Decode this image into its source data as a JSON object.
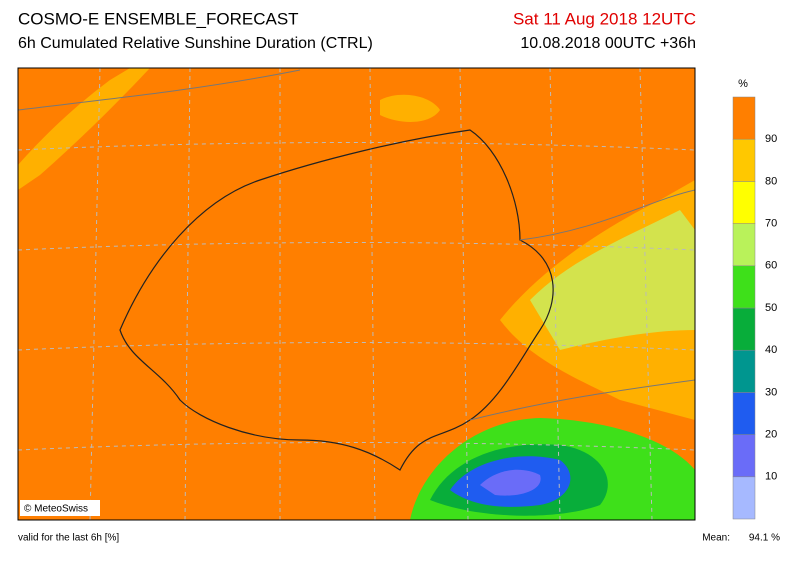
{
  "header": {
    "title": "COSMO-E ENSEMBLE_FORECAST",
    "subtitle": "6h Cumulated Relative Sunshine Duration (CTRL)",
    "valid_time": "Sat 11 Aug 2018 12UTC",
    "run": "10.08.2018 00UTC +36h"
  },
  "map": {
    "credit": "© MeteoSwiss"
  },
  "legend": {
    "unit": "%",
    "levels": [
      10,
      20,
      30,
      40,
      50,
      60,
      70,
      80,
      90
    ],
    "colors": [
      "#a6b9ff",
      "#6a6cf8",
      "#1f5cf0",
      "#00968f",
      "#08ad3a",
      "#3ee01a",
      "#b9f25a",
      "#ffff00",
      "#ffc800",
      "#ff7f00"
    ]
  },
  "footer": {
    "note": "valid for the last 6h [%]",
    "mean_label": "Mean:",
    "mean_value": "94.1 %"
  }
}
